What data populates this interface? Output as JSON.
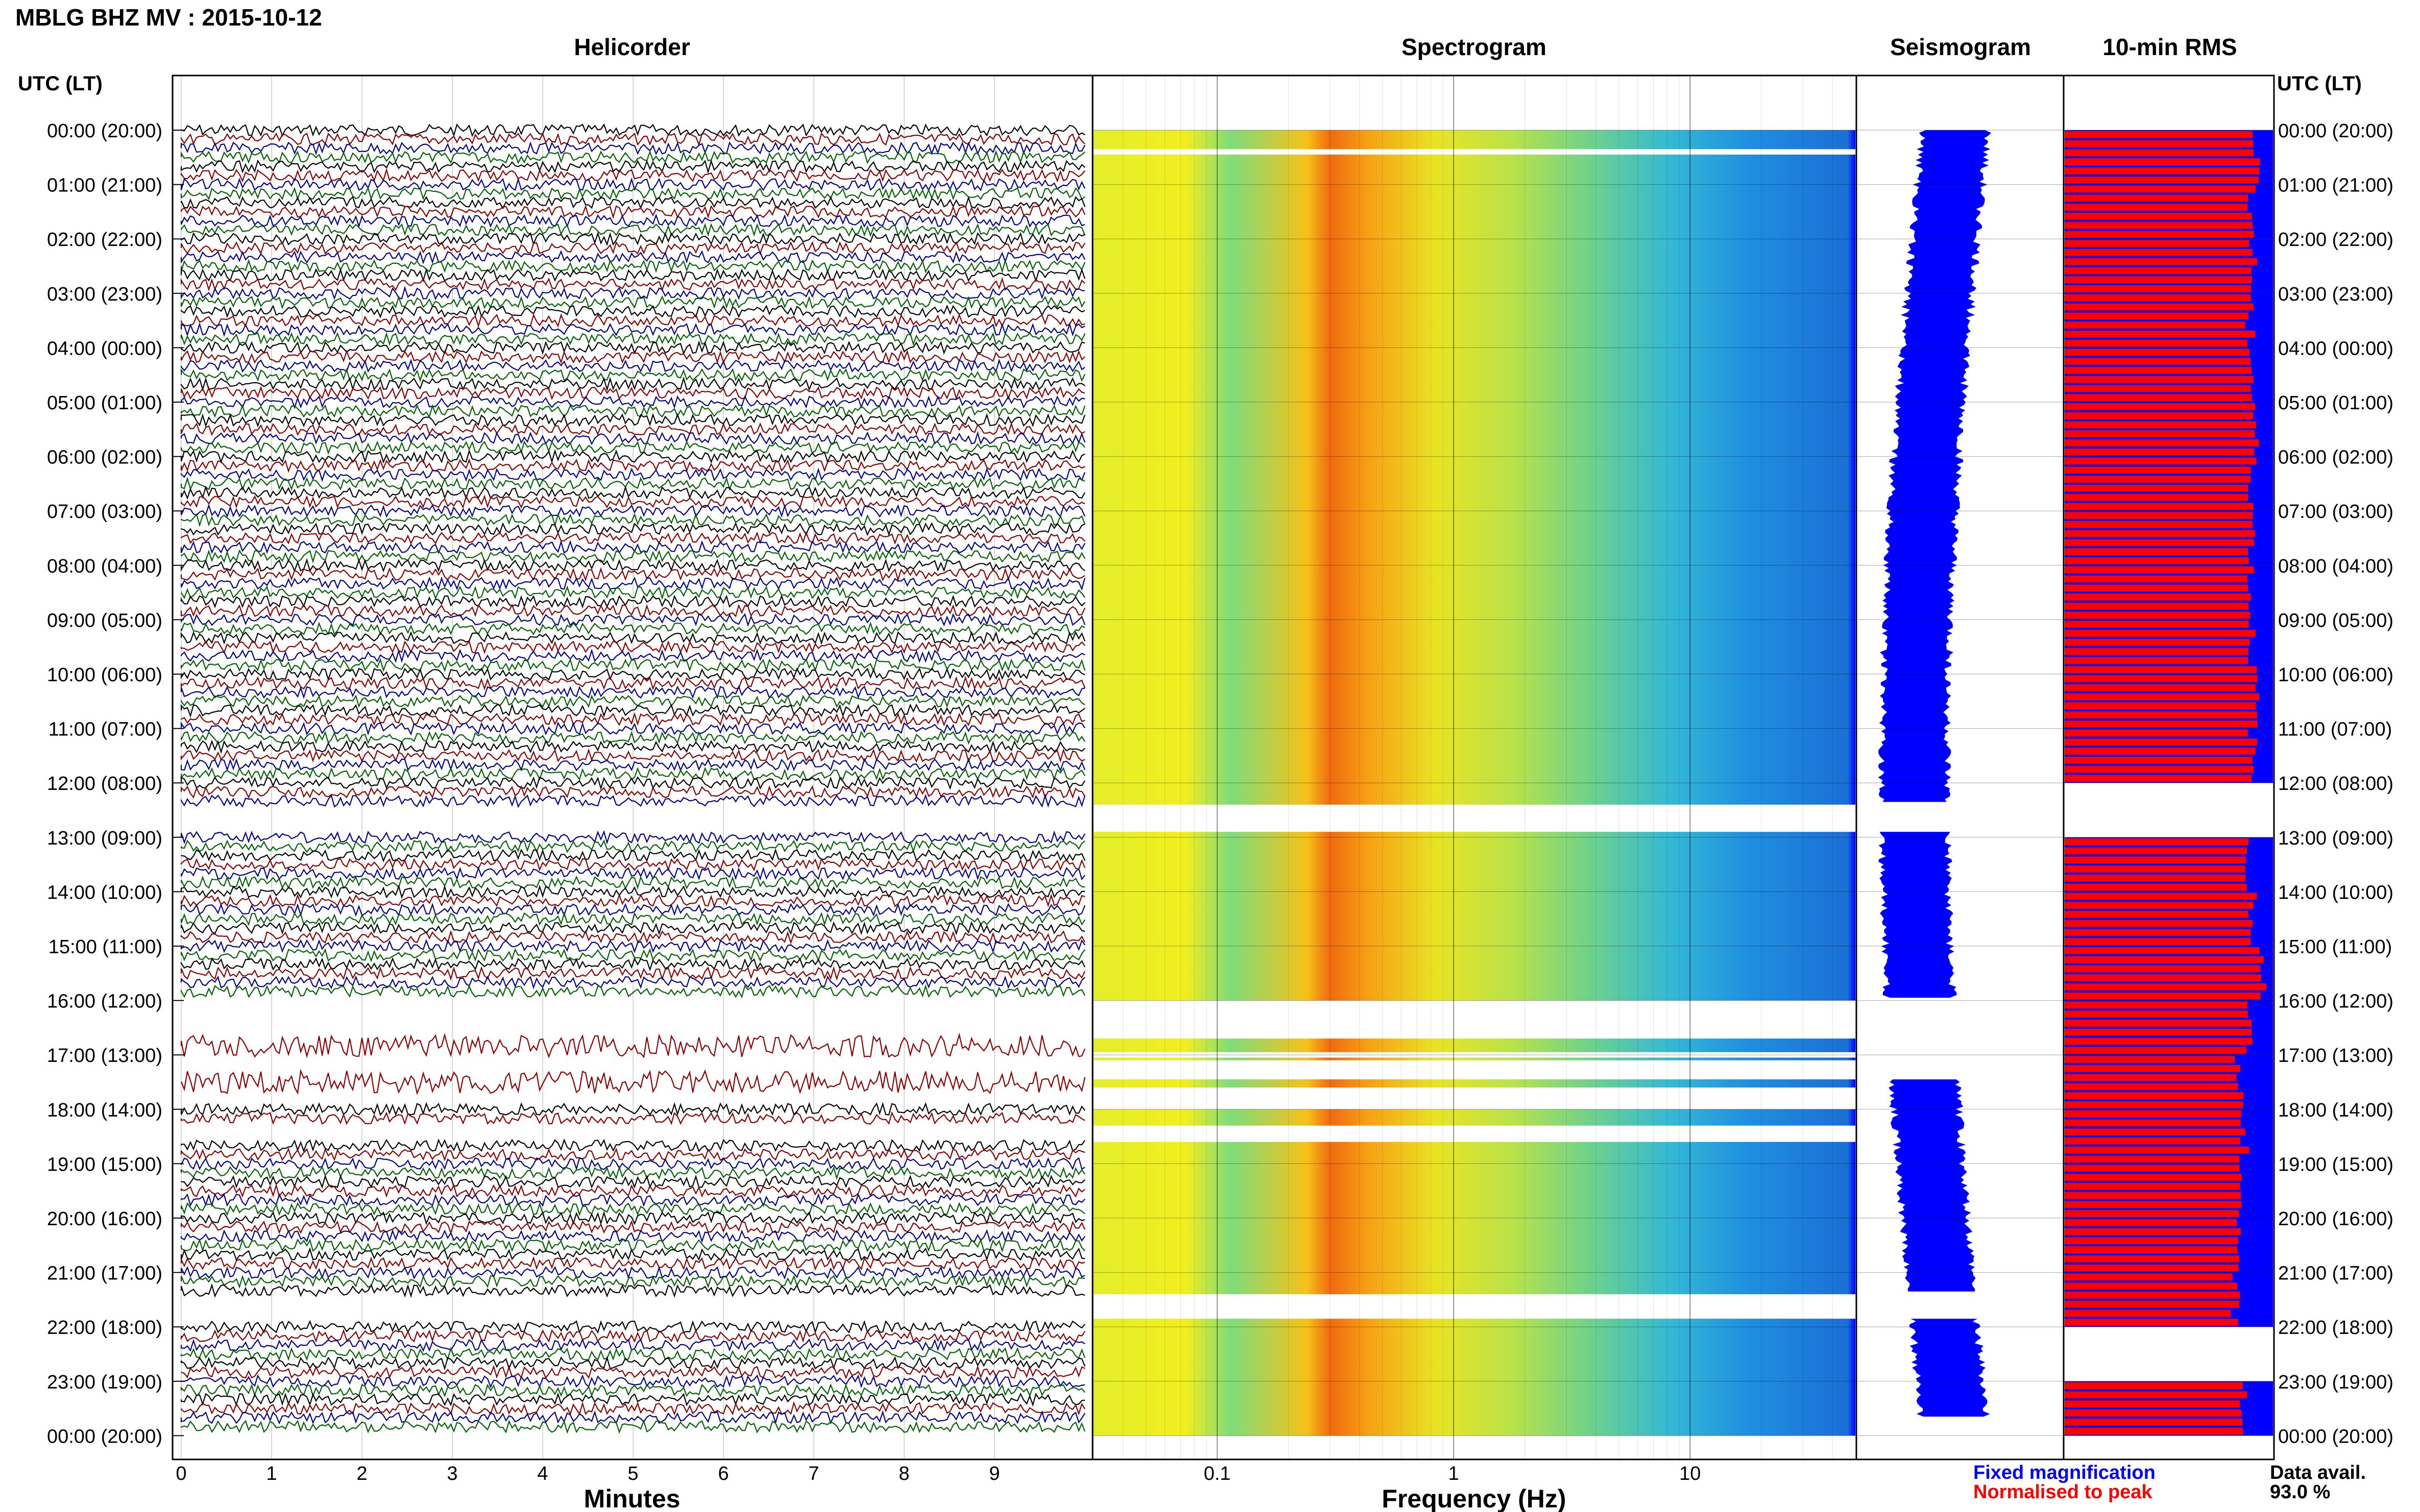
{
  "header": {
    "title": "MBLG BHZ MV : 2015-10-12",
    "utc_lt_left": "UTC (LT)",
    "utc_lt_right": "UTC (LT)"
  },
  "panels": {
    "helicorder": {
      "title": "Helicorder",
      "xlabel": "Minutes",
      "xticks": [
        "0",
        "1",
        "2",
        "3",
        "4",
        "5",
        "6",
        "7",
        "8",
        "9"
      ]
    },
    "spectrogram": {
      "title": "Spectrogram",
      "xlabel": "Frequency (Hz)",
      "xticks": [
        "0.1",
        "1",
        "10"
      ]
    },
    "seismogram": {
      "title": "Seismogram"
    },
    "rms": {
      "title": "10-min RMS"
    }
  },
  "time_labels": [
    "00:00 (20:00)",
    "01:00 (21:00)",
    "02:00 (22:00)",
    "03:00 (23:00)",
    "04:00 (00:00)",
    "05:00 (01:00)",
    "06:00 (02:00)",
    "07:00 (03:00)",
    "08:00 (04:00)",
    "09:00 (05:00)",
    "10:00 (06:00)",
    "11:00 (07:00)",
    "12:00 (08:00)",
    "13:00 (09:00)",
    "14:00 (10:00)",
    "15:00 (11:00)",
    "16:00 (12:00)",
    "17:00 (13:00)",
    "18:00 (14:00)",
    "19:00 (15:00)",
    "20:00 (16:00)",
    "21:00 (17:00)",
    "22:00 (18:00)",
    "23:00 (19:00)",
    "00:00 (20:00)"
  ],
  "legend": {
    "fixed": "Fixed magnification",
    "normalised": "Normalised to peak",
    "avail_label": "Data avail.",
    "avail_value": "93.0 %"
  },
  "colors": {
    "trace_cycle": [
      "#000000",
      "#8b0000",
      "#00008b",
      "#006400"
    ],
    "fixed": "#0000ff",
    "normalised": "#ff0000"
  },
  "chart_data": {
    "type": "heatmap",
    "minutes_range": [
      0,
      10
    ],
    "freq_range_hz": [
      0.03,
      50
    ],
    "freq_scale": "log",
    "hours_range": [
      0,
      24
    ],
    "data_gaps_hours": [
      [
        0.35,
        0.45
      ],
      [
        12.4,
        12.9
      ],
      [
        16.0,
        16.7
      ],
      [
        16.95,
        17.05
      ],
      [
        17.1,
        17.45
      ],
      [
        17.6,
        18.0
      ],
      [
        18.3,
        18.6
      ],
      [
        21.4,
        21.85
      ]
    ],
    "spectral_peak_hz": [
      0.2,
      0.4
    ],
    "rms_normalised_levels": [
      0.92,
      0.9,
      0.9,
      0.89,
      0.9,
      0.91,
      0.9,
      0.9,
      0.89,
      0.9,
      0.91,
      0.9,
      0.0,
      0.89,
      0.9,
      0.95,
      0.88,
      0.84,
      0.86,
      0.84,
      0.85,
      0.82,
      0.0,
      0.86
    ],
    "data_availability_percent": 93.0
  }
}
